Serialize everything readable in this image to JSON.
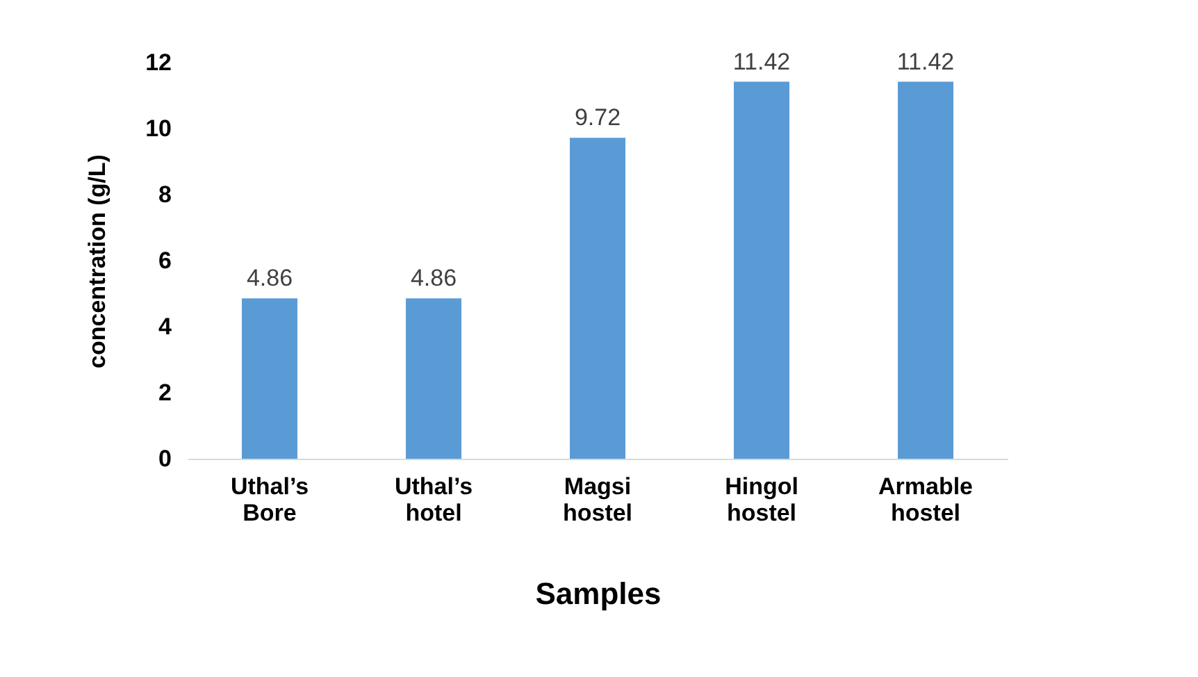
{
  "chart_data": {
    "type": "bar",
    "xlabel": "Samples",
    "ylabel": "concentration (g/L)",
    "categories": [
      "Uthal’s Bore",
      "Uthal’s hotel",
      "Magsi hostel",
      "Hingol hostel",
      "Armable hostel"
    ],
    "values": [
      4.86,
      4.86,
      9.72,
      11.42,
      11.42
    ],
    "color": "#5b9bd5",
    "data_labels": true,
    "ylim": [
      0,
      12
    ],
    "yticks": [
      0,
      2,
      4,
      6,
      8,
      10,
      12
    ],
    "grid": false
  }
}
